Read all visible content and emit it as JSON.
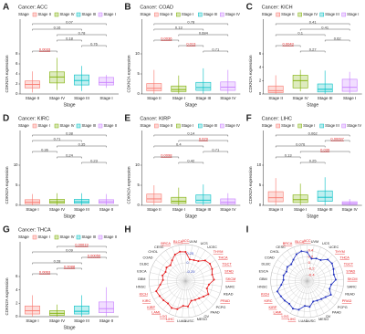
{
  "chart_data": [
    {
      "type": "box",
      "label": "A",
      "title": "Cancer: ACC",
      "legend_title": "Stage",
      "xlabel": "Stage",
      "ylabel": "CDKN2A expression",
      "sig_color": "#e41a1c",
      "ylim": [
        0,
        8
      ],
      "yticks": [
        0,
        2,
        4,
        6,
        8
      ],
      "series": [
        {
          "name": "Stage II",
          "color": "#f8766d",
          "stats": [
            0.3,
            1.2,
            1.9,
            2.6,
            4.5
          ]
        },
        {
          "name": "Stage IV",
          "color": "#7cae00",
          "stats": [
            0.8,
            2.2,
            3.4,
            4.4,
            7.2
          ]
        },
        {
          "name": "Stage III",
          "color": "#00bfc4",
          "stats": [
            0.6,
            1.8,
            2.7,
            3.8,
            5.6
          ]
        },
        {
          "name": "Stage I",
          "color": "#c77cff",
          "stats": [
            1.2,
            1.8,
            2.3,
            3.3,
            3.8
          ]
        }
      ],
      "brackets": [
        {
          "text": "0.07",
          "from": 0,
          "to": 3,
          "significant": false
        },
        {
          "text": "0.16",
          "from": 0,
          "to": 2,
          "significant": false
        },
        {
          "text": "0.78",
          "from": 1,
          "to": 3,
          "significant": false
        },
        {
          "text": "0.18",
          "from": 1,
          "to": 2,
          "significant": false
        },
        {
          "text": "0.76",
          "from": 2,
          "to": 3,
          "significant": false
        },
        {
          "text": "0.0033",
          "from": 0,
          "to": 1,
          "significant": true
        }
      ]
    },
    {
      "type": "box",
      "label": "B",
      "title": "Cancer: COAD",
      "legend_title": "Stage",
      "xlabel": "Stage",
      "ylabel": "CDKN2A expression",
      "sig_color": "#e41a1c",
      "ylim": [
        0,
        10
      ],
      "yticks": [
        0,
        5,
        10
      ],
      "series": [
        {
          "name": "Stage II",
          "color": "#f8766d",
          "stats": [
            0.1,
            0.8,
            1.4,
            2.6,
            6.0
          ]
        },
        {
          "name": "Stage I",
          "color": "#7cae00",
          "stats": [
            0.1,
            0.6,
            1.1,
            2.0,
            4.6
          ]
        },
        {
          "name": "Stage III",
          "color": "#00bfc4",
          "stats": [
            0.1,
            0.9,
            1.6,
            2.9,
            6.4
          ]
        },
        {
          "name": "Stage IV",
          "color": "#c77cff",
          "stats": [
            0.1,
            0.9,
            1.7,
            3.0,
            6.0
          ]
        }
      ],
      "brackets": [
        {
          "text": "0.78",
          "from": 0,
          "to": 3,
          "significant": false
        },
        {
          "text": "0.13",
          "from": 0,
          "to": 2,
          "significant": false
        },
        {
          "text": "0.684",
          "from": 1,
          "to": 3,
          "significant": false
        },
        {
          "text": "0.0036",
          "from": 0,
          "to": 1,
          "significant": true
        },
        {
          "text": "0.013",
          "from": 1,
          "to": 2,
          "significant": true
        },
        {
          "text": "0.71",
          "from": 2,
          "to": 3,
          "significant": false
        }
      ]
    },
    {
      "type": "box",
      "label": "C",
      "title": "Cancer: KICH",
      "legend_title": "Stage",
      "xlabel": "Stage",
      "ylabel": "CDKN2A expression",
      "sig_color": "#e41a1c",
      "ylim": [
        0,
        6
      ],
      "yticks": [
        0,
        2,
        4,
        6
      ],
      "series": [
        {
          "name": "Stage II",
          "color": "#f8766d",
          "stats": [
            0.0,
            0.2,
            0.5,
            1.2,
            2.8
          ]
        },
        {
          "name": "Stage IV",
          "color": "#7cae00",
          "stats": [
            0.4,
            0.9,
            2.0,
            2.8,
            3.6
          ]
        },
        {
          "name": "Stage III",
          "color": "#00bfc4",
          "stats": [
            0.0,
            0.3,
            0.7,
            1.5,
            3.5
          ]
        },
        {
          "name": "Stage I",
          "color": "#c77cff",
          "stats": [
            0.1,
            0.4,
            1.0,
            2.2,
            3.3
          ]
        }
      ],
      "brackets": [
        {
          "text": "0.41",
          "from": 0,
          "to": 3,
          "significant": false
        },
        {
          "text": "0.41",
          "from": 1,
          "to": 3,
          "significant": false
        },
        {
          "text": "0.1",
          "from": 0,
          "to": 2,
          "significant": false
        },
        {
          "text": "0.62",
          "from": 2,
          "to": 3,
          "significant": false
        },
        {
          "text": "0.0043",
          "from": 0,
          "to": 1,
          "significant": true
        },
        {
          "text": "0.27",
          "from": 1,
          "to": 2,
          "significant": false
        }
      ]
    },
    {
      "type": "box",
      "label": "D",
      "title": "Cancer: KIRC",
      "legend_title": "Stage",
      "xlabel": "Stage",
      "ylabel": "CDKN2A expression",
      "sig_color": "#e41a1c",
      "ylim": [
        0,
        10
      ],
      "yticks": [
        0,
        5,
        10
      ],
      "series": [
        {
          "name": "Stage I",
          "color": "#f8766d",
          "stats": [
            0.0,
            0.4,
            0.8,
            1.4,
            2.8
          ]
        },
        {
          "name": "Stage IV",
          "color": "#7cae00",
          "stats": [
            0.0,
            0.5,
            0.9,
            1.5,
            3.0
          ]
        },
        {
          "name": "Stage III",
          "color": "#00bfc4",
          "stats": [
            0.0,
            0.5,
            0.9,
            1.5,
            3.0
          ]
        },
        {
          "name": "Stage II",
          "color": "#c77cff",
          "stats": [
            0.0,
            0.5,
            0.9,
            1.4,
            2.8
          ]
        }
      ],
      "brackets": [
        {
          "text": "0.38",
          "from": 0,
          "to": 3,
          "significant": false
        },
        {
          "text": "0.71",
          "from": 0,
          "to": 2,
          "significant": false
        },
        {
          "text": "0.35",
          "from": 1,
          "to": 3,
          "significant": false
        },
        {
          "text": "0.36",
          "from": 0,
          "to": 1,
          "significant": false
        },
        {
          "text": "0.24",
          "from": 1,
          "to": 2,
          "significant": false
        },
        {
          "text": "0.23",
          "from": 2,
          "to": 3,
          "significant": false
        }
      ]
    },
    {
      "type": "box",
      "label": "E",
      "title": "Cancer: KIRP",
      "legend_title": "Stage",
      "xlabel": "Stage",
      "ylabel": "CDKN2A expression",
      "sig_color": "#e41a1c",
      "ylim": [
        0,
        10
      ],
      "yticks": [
        0,
        5,
        10
      ],
      "series": [
        {
          "name": "Stage II",
          "color": "#f8766d",
          "stats": [
            0.1,
            0.8,
            1.6,
            2.8,
            5.0
          ]
        },
        {
          "name": "Stage I",
          "color": "#7cae00",
          "stats": [
            0.0,
            0.5,
            1.0,
            2.0,
            4.4
          ]
        },
        {
          "name": "Stage III",
          "color": "#00bfc4",
          "stats": [
            0.0,
            0.6,
            1.3,
            2.6,
            5.2
          ]
        },
        {
          "name": "Stage IV",
          "color": "#c77cff",
          "stats": [
            0.0,
            0.3,
            0.8,
            1.6,
            3.0
          ]
        }
      ],
      "brackets": [
        {
          "text": "0.14",
          "from": 0,
          "to": 3,
          "significant": false
        },
        {
          "text": "0.029",
          "from": 1,
          "to": 3,
          "significant": true
        },
        {
          "text": "0.4",
          "from": 0,
          "to": 2,
          "significant": false
        },
        {
          "text": "0.71",
          "from": 2,
          "to": 3,
          "significant": false
        },
        {
          "text": "0.0098",
          "from": 0,
          "to": 1,
          "significant": true
        },
        {
          "text": "0.42",
          "from": 1,
          "to": 2,
          "significant": false
        }
      ]
    },
    {
      "type": "box",
      "label": "F",
      "title": "Cancer: LIHC",
      "legend_title": "Stage",
      "xlabel": "Stage",
      "ylabel": "CDKN2A expression",
      "sig_color": "#e41a1c",
      "ylim": [
        0,
        10
      ],
      "yticks": [
        0,
        5,
        10
      ],
      "series": [
        {
          "name": "Stage II",
          "color": "#f8766d",
          "stats": [
            0.0,
            0.9,
            1.9,
            3.4,
            6.8
          ]
        },
        {
          "name": "Stage I",
          "color": "#7cae00",
          "stats": [
            0.0,
            0.7,
            1.4,
            2.6,
            5.4
          ]
        },
        {
          "name": "Stage III",
          "color": "#00bfc4",
          "stats": [
            0.0,
            1.0,
            2.0,
            3.6,
            7.0
          ]
        },
        {
          "name": "Stage IV",
          "color": "#c77cff",
          "stats": [
            0.0,
            0.2,
            0.5,
            0.9,
            1.6
          ]
        }
      ],
      "brackets": [
        {
          "text": "0.062",
          "from": 0,
          "to": 3,
          "significant": false
        },
        {
          "text": "0.00097",
          "from": 2,
          "to": 3,
          "significant": true
        },
        {
          "text": "0.076",
          "from": 0,
          "to": 2,
          "significant": false
        },
        {
          "text": "0.039",
          "from": 1,
          "to": 3,
          "significant": true
        },
        {
          "text": "0.13",
          "from": 0,
          "to": 1,
          "significant": false
        },
        {
          "text": "0.25",
          "from": 1,
          "to": 2,
          "significant": false
        }
      ]
    },
    {
      "type": "box",
      "label": "G",
      "title": "Cancer: THCA",
      "legend_title": "Stage",
      "xlabel": "Stage",
      "ylabel": "CDKN2A expression",
      "sig_color": "#e41a1c",
      "ylim": [
        0,
        6
      ],
      "yticks": [
        0,
        2,
        4,
        6
      ],
      "series": [
        {
          "name": "Stage I",
          "color": "#f8766d",
          "stats": [
            0.0,
            0.4,
            0.9,
            1.6,
            3.2
          ]
        },
        {
          "name": "Stage IV",
          "color": "#7cae00",
          "stats": [
            0.0,
            0.2,
            0.5,
            0.9,
            1.8
          ]
        },
        {
          "name": "Stage III",
          "color": "#00bfc4",
          "stats": [
            0.0,
            0.4,
            0.8,
            1.6,
            3.2
          ]
        },
        {
          "name": "Stage II",
          "color": "#c77cff",
          "stats": [
            0.0,
            0.6,
            1.2,
            2.2,
            4.4
          ]
        }
      ],
      "brackets": [
        {
          "text": "0.00019",
          "from": 1,
          "to": 3,
          "significant": true
        },
        {
          "text": "0.09",
          "from": 0,
          "to": 3,
          "significant": false
        },
        {
          "text": "0.00050",
          "from": 2,
          "to": 3,
          "significant": true
        },
        {
          "text": "0.28",
          "from": 0,
          "to": 2,
          "significant": false
        },
        {
          "text": "0.0088",
          "from": 1,
          "to": 2,
          "significant": true
        },
        {
          "text": "0.0063",
          "from": 0,
          "to": 1,
          "significant": true
        }
      ]
    },
    {
      "type": "radar",
      "label": "H",
      "color": "#e41a1c",
      "ring_color": "#3a50c8",
      "rlim": [
        -0.5,
        0.5
      ],
      "rticks": [
        -0.25,
        0,
        0.25
      ],
      "categories": [
        "ACC",
        "UVM",
        "UCS",
        "UCEC",
        "THYM",
        "THCA",
        "TGCT",
        "STAD",
        "SKCM",
        "SARC",
        "READ",
        "PRAD",
        "PCPG",
        "PAAD",
        "OV",
        "MESO",
        "LUSC",
        "LUAD",
        "LIHC",
        "LGG",
        "LAML",
        "KIRP",
        "KIRC",
        "KICH",
        "HNSC",
        "GBM",
        "ESCA",
        "DLBC",
        "COAD",
        "CHOL",
        "CESC",
        "BRCA",
        "BLCA"
      ],
      "values": [
        0.3,
        0.1,
        0.12,
        0.15,
        0.28,
        0.32,
        0.3,
        0.25,
        0.28,
        0.15,
        0.12,
        0.22,
        0.15,
        0.1,
        0.08,
        0.06,
        0.2,
        0.18,
        0.3,
        0.33,
        0.28,
        0.3,
        0.32,
        0.35,
        0.2,
        0.12,
        0.15,
        0.1,
        0.14,
        0.1,
        0.18,
        0.28,
        0.32
      ],
      "highlight": [
        0,
        4,
        5,
        6,
        7,
        8,
        11,
        18,
        19,
        20,
        21,
        22,
        23,
        31,
        32
      ]
    },
    {
      "type": "radar",
      "label": "I",
      "color": "#1f2fbf",
      "ring_color": "#e41a1c",
      "rlim": [
        -0.6,
        0.6
      ],
      "rticks": [
        -0.4,
        -0.2,
        0,
        0.2,
        0.4
      ],
      "categories": [
        "ACC",
        "UVM",
        "UCS",
        "UCEC",
        "THYM",
        "THCA",
        "TGCT",
        "STAD",
        "SKCM",
        "SARC",
        "READ",
        "PRAD",
        "PCPG",
        "PAAD",
        "OV",
        "MESO",
        "LUSC",
        "LUAD",
        "LIHC",
        "LGG",
        "LAML",
        "KIRP",
        "KIRC",
        "KICH",
        "HNSC",
        "GBM",
        "ESCA",
        "DLBC",
        "COAD",
        "CHOL",
        "CESC",
        "BRCA",
        "BLCA"
      ],
      "values": [
        0.35,
        0.15,
        0.2,
        0.22,
        0.38,
        0.4,
        0.35,
        0.3,
        0.34,
        0.2,
        0.18,
        0.3,
        0.2,
        0.15,
        0.12,
        0.1,
        0.25,
        0.22,
        0.38,
        0.42,
        0.35,
        0.38,
        0.4,
        0.44,
        0.26,
        0.18,
        0.2,
        0.15,
        0.2,
        0.16,
        0.24,
        0.35,
        0.4
      ],
      "highlight": [
        0,
        4,
        5,
        6,
        7,
        8,
        11,
        18,
        19,
        20,
        21,
        22,
        23,
        31,
        32
      ]
    }
  ]
}
